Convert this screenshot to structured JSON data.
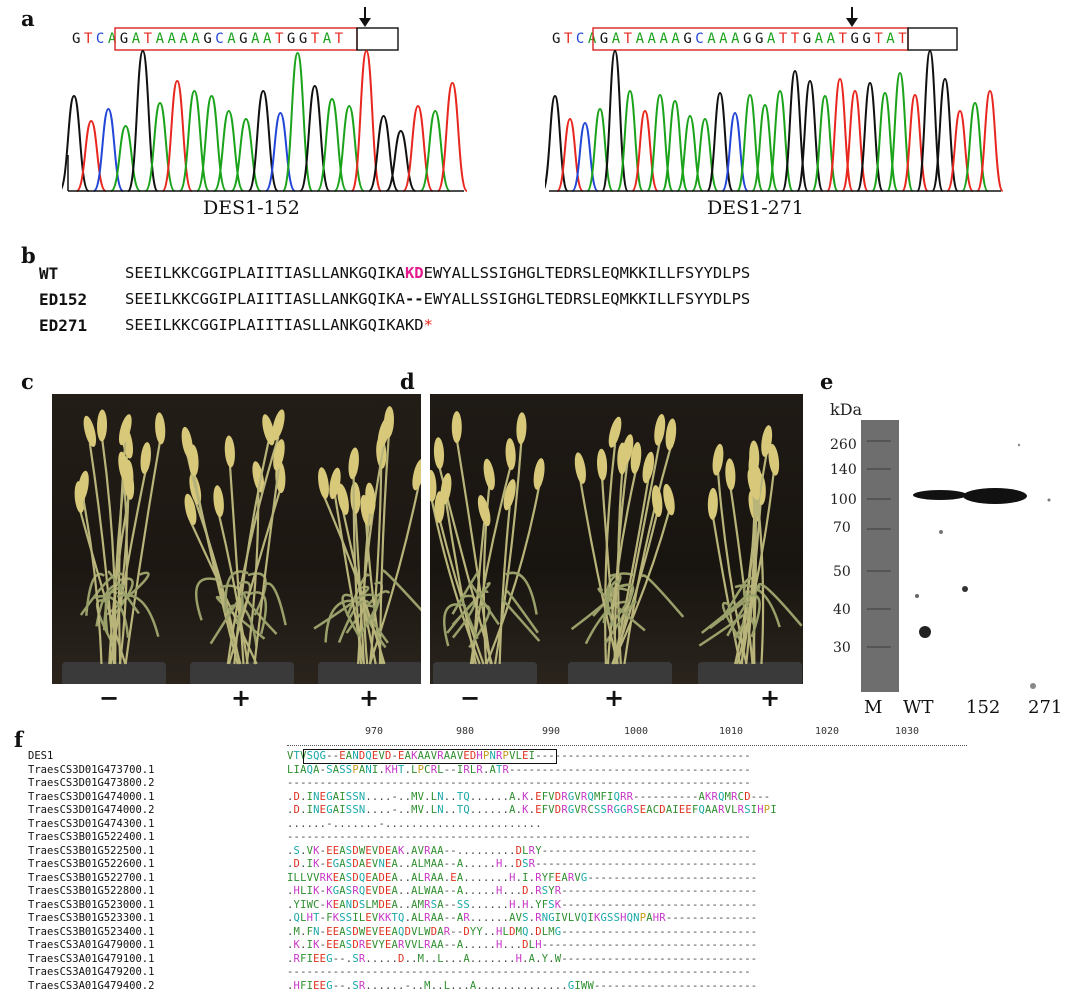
{
  "panel_a": {
    "letter": "a",
    "left": {
      "label": "DES1-152",
      "seq": [
        "G",
        "T",
        "C",
        "A",
        "G",
        "A",
        "T",
        "A",
        "A",
        "A",
        "A",
        "G",
        "C",
        "A",
        "G",
        "A",
        "A",
        "T",
        "G",
        "G",
        "T",
        "A",
        "T"
      ]
    },
    "right": {
      "label": "DES1-271",
      "seq": [
        "G",
        "T",
        "C",
        "A",
        "G",
        "A",
        "T",
        "A",
        "A",
        "A",
        "A",
        "G",
        "C",
        "A",
        "A",
        "A",
        "G",
        "G",
        "A",
        "T",
        "T",
        "G",
        "A",
        "A",
        "T",
        "G",
        "G",
        "T",
        "A",
        "T"
      ]
    },
    "colors": {
      "A": "#1ba31b",
      "T": "#e8271f",
      "G": "#111111",
      "C": "#2246d6"
    }
  },
  "panel_b": {
    "letter": "b",
    "rows": [
      {
        "name": "WT",
        "pre": "SEEILKKCGGIPLAIITIASLLANKGQIKA",
        "mid": "KD",
        "post": "EWYALLSSIGHGLTEDRSLEQMKKILLFSYYDLPS"
      },
      {
        "name": "ED152",
        "pre": "SEEILKKCGGIPLAIITIASLLANKGQIKA",
        "mid": "--",
        "post": "EWYALLSSIGHGLTEDRSLEQMKKILLFSYYDLPS"
      },
      {
        "name": "ED271",
        "pre": "SEEILKKCGGIPLAIITIASLLANKGQIKAKD",
        "mid": "*",
        "post": ""
      }
    ],
    "highlight_color": "#e6198f",
    "stop_color": "#e8271f"
  },
  "panel_c": {
    "letter": "c",
    "signs": [
      "−",
      "+",
      "+"
    ]
  },
  "panel_d": {
    "letter": "d",
    "signs": [
      "−",
      "+",
      "+"
    ]
  },
  "panel_e": {
    "letter": "e",
    "unit": "kDa",
    "markers": [
      "260",
      "140",
      "100",
      "70",
      "50",
      "40",
      "30"
    ],
    "lanes": [
      "M",
      "WT",
      "152",
      "271"
    ]
  },
  "panel_f": {
    "letter": "f",
    "ruler": [
      "970",
      "980",
      "990",
      "1000",
      "1010",
      "1020",
      "1030"
    ],
    "names": [
      "DES1",
      "TraesCS3D01G473700.1",
      "TraesCS3D01G473800.2",
      "TraesCS3D01G474000.1",
      "TraesCS3D01G474000.2",
      "TraesCS3D01G474300.1",
      "TraesCS3B01G522400.1",
      "TraesCS3B01G522500.1",
      "TraesCS3B01G522600.1",
      "TraesCS3B01G522700.1",
      "TraesCS3B01G522800.1",
      "TraesCS3B01G523000.1",
      "TraesCS3B01G523300.1",
      "TraesCS3B01G523400.1",
      "TraesCS3A01G479000.1",
      "TraesCS3A01G479100.1",
      "TraesCS3A01G479200.1",
      "TraesCS3A01G479400.2"
    ],
    "seqs": [
      "VTVSQG--EANDQEVD-EAKAAVRAAVEDHPNRPVLEI---------------------------------",
      "LIAQA-SASSPANI.KHT.LPCRL--IRLR.ATR-------------------------------------",
      "-----------------------------------------------------------------------",
      ".D.INEGAISSN....-..MV.LN..TQ......A.K.EFVDRGVRQMFIQRR----------AKRQMRCD---",
      ".D.INEGAISSN....-..MV.LN..TQ......A.K.EFVDRGVRCSSRGGRSEACDAIEEFQAARVLRSIHPI",
      "......-.......-........................",
      "-----------------------------------------------------------------------",
      ".S.VK-EEASDWEVDEAK.AVRAA--.........DLRY---------------------------------",
      ".D.IK-EGASDAEVNEA..ALMAA--A.....H..DSR----------------------------------",
      "ILLVVRKEASDQEADEA..ALRAA.EA.......H.I.RYFEARVG--------------------------",
      ".HLIK-KGASRQEVDEA..ALWAA--A.....H...D.RSYR------------------------------",
      ".YIWC-KEANDSLMDEA..AMRSA--SS......H.H.YFSK------------------------------",
      ".QLHT-FKSSILEVKKTQ.ALRAA--AR......AVS.RNGIVLVQIKGSSHQNPAHR--------------",
      ".M.FN-EEASDWEVEEAQDVLWDAR--DYY..HLDMQ.DLMG------------------------------",
      ".K.IK-EEASDREVYEARVVLRAA--A.....H...DLH---------------------------------",
      ".RFIEEG--.SR.....D..M..L...A.......H.A.Y.W------------------------------",
      "-----------------------------------------------------------------------",
      ".HFIEEG--.SR......-..M..L...A..............GIWW-------------------------"
    ]
  }
}
